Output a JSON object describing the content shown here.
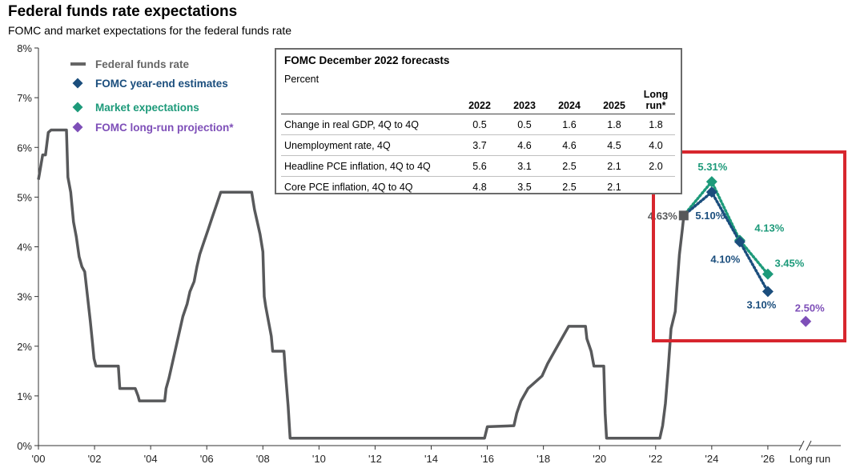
{
  "title": "Federal funds rate expectations",
  "subtitle": "FOMC and market expectations for the federal funds rate",
  "colors": {
    "fed_funds": "#58595b",
    "fomc": "#1b4e7d",
    "market": "#1d9a7a",
    "longrun": "#7e4fb8",
    "highlight": "#d7262e"
  },
  "legend": [
    {
      "label": "Federal funds rate",
      "marker": "line",
      "color": "#666666"
    },
    {
      "label": "FOMC  year-end estimates",
      "marker": "diamond",
      "color": "#1b4e7d"
    },
    {
      "label": "Market expectations",
      "marker": "diamond",
      "color": "#1d9a7a"
    },
    {
      "label": "FOMC  long-run projection*",
      "marker": "diamond",
      "color": "#7e4fb8"
    }
  ],
  "table": {
    "title": "FOMC December 2022 forecasts",
    "unit": "Percent",
    "columns": [
      "2022",
      "2023",
      "2024",
      "2025",
      "Long run*"
    ],
    "rows": [
      {
        "label": "Change in real GDP, 4Q to 4Q",
        "values": [
          "0.5",
          "0.5",
          "1.6",
          "1.8",
          "1.8"
        ]
      },
      {
        "label": "Unemployment rate, 4Q",
        "values": [
          "3.7",
          "4.6",
          "4.6",
          "4.5",
          "4.0"
        ]
      },
      {
        "label": "Headline PCE inflation, 4Q to 4Q",
        "values": [
          "5.6",
          "3.1",
          "2.5",
          "2.1",
          "2.0"
        ]
      },
      {
        "label": "Core PCE inflation, 4Q to 4Q",
        "values": [
          "4.8",
          "3.5",
          "2.5",
          "2.1",
          ""
        ]
      }
    ]
  },
  "chart_data": {
    "type": "line",
    "title": "Federal funds rate expectations",
    "subtitle": "FOMC and market expectations for the federal funds rate",
    "ylim": [
      0,
      8
    ],
    "xlim": [
      2000,
      2028.6
    ],
    "y_ticks": [
      "0%",
      "1%",
      "2%",
      "3%",
      "4%",
      "5%",
      "6%",
      "7%",
      "8%"
    ],
    "y_tick_values": [
      0,
      1,
      2,
      3,
      4,
      5,
      6,
      7,
      8
    ],
    "x_ticks": [
      "'00",
      "'02",
      "'04",
      "'06",
      "'08",
      "'10",
      "'12",
      "'14",
      "'16",
      "'18",
      "'20",
      "'22",
      "'24",
      "'26",
      "Long run"
    ],
    "x_tick_values": [
      2000,
      2002,
      2004,
      2006,
      2008,
      2010,
      2012,
      2014,
      2016,
      2018,
      2020,
      2022,
      2024,
      2026,
      2027.5
    ],
    "series": [
      {
        "name": "Federal funds rate",
        "points": [
          [
            2000.0,
            5.35
          ],
          [
            2000.15,
            5.85
          ],
          [
            2000.25,
            5.85
          ],
          [
            2000.35,
            6.3
          ],
          [
            2000.45,
            6.35
          ],
          [
            2001.0,
            6.35
          ],
          [
            2001.05,
            5.4
          ],
          [
            2001.15,
            5.1
          ],
          [
            2001.25,
            4.5
          ],
          [
            2001.35,
            4.2
          ],
          [
            2001.45,
            3.8
          ],
          [
            2001.55,
            3.6
          ],
          [
            2001.65,
            3.5
          ],
          [
            2001.75,
            3.0
          ],
          [
            2001.85,
            2.5
          ],
          [
            2001.92,
            2.1
          ],
          [
            2001.98,
            1.75
          ],
          [
            2002.05,
            1.6
          ],
          [
            2002.85,
            1.6
          ],
          [
            2002.9,
            1.15
          ],
          [
            2003.45,
            1.15
          ],
          [
            2003.55,
            1.0
          ],
          [
            2003.6,
            0.9
          ],
          [
            2004.5,
            0.9
          ],
          [
            2004.55,
            1.15
          ],
          [
            2004.65,
            1.35
          ],
          [
            2004.75,
            1.6
          ],
          [
            2004.85,
            1.85
          ],
          [
            2004.95,
            2.1
          ],
          [
            2005.05,
            2.35
          ],
          [
            2005.15,
            2.6
          ],
          [
            2005.3,
            2.85
          ],
          [
            2005.4,
            3.1
          ],
          [
            2005.55,
            3.3
          ],
          [
            2005.65,
            3.6
          ],
          [
            2005.75,
            3.85
          ],
          [
            2005.9,
            4.1
          ],
          [
            2006.05,
            4.35
          ],
          [
            2006.2,
            4.6
          ],
          [
            2006.35,
            4.85
          ],
          [
            2006.5,
            5.1
          ],
          [
            2007.6,
            5.1
          ],
          [
            2007.7,
            4.75
          ],
          [
            2007.8,
            4.5
          ],
          [
            2007.9,
            4.25
          ],
          [
            2008.0,
            3.9
          ],
          [
            2008.05,
            3.0
          ],
          [
            2008.1,
            2.8
          ],
          [
            2008.3,
            2.2
          ],
          [
            2008.35,
            1.9
          ],
          [
            2008.75,
            1.9
          ],
          [
            2008.8,
            1.5
          ],
          [
            2008.9,
            0.8
          ],
          [
            2008.97,
            0.15
          ],
          [
            2015.9,
            0.15
          ],
          [
            2016.0,
            0.38
          ],
          [
            2016.95,
            0.4
          ],
          [
            2017.05,
            0.65
          ],
          [
            2017.2,
            0.9
          ],
          [
            2017.45,
            1.15
          ],
          [
            2017.95,
            1.4
          ],
          [
            2018.15,
            1.65
          ],
          [
            2018.4,
            1.9
          ],
          [
            2018.65,
            2.15
          ],
          [
            2018.9,
            2.4
          ],
          [
            2019.5,
            2.4
          ],
          [
            2019.55,
            2.15
          ],
          [
            2019.7,
            1.9
          ],
          [
            2019.8,
            1.6
          ],
          [
            2019.95,
            1.6
          ],
          [
            2020.15,
            1.6
          ],
          [
            2020.2,
            0.65
          ],
          [
            2020.25,
            0.15
          ],
          [
            2022.15,
            0.15
          ],
          [
            2022.25,
            0.4
          ],
          [
            2022.35,
            0.85
          ],
          [
            2022.45,
            1.55
          ],
          [
            2022.55,
            2.35
          ],
          [
            2022.7,
            2.7
          ],
          [
            2022.75,
            3.1
          ],
          [
            2022.85,
            3.85
          ],
          [
            2022.95,
            4.35
          ],
          [
            2023.0,
            4.6
          ]
        ]
      },
      {
        "name": "FOMC year-end estimates",
        "points": [
          [
            2023.0,
            4.63
          ],
          [
            2024.0,
            5.1
          ],
          [
            2025.0,
            4.1
          ],
          [
            2026.0,
            3.1
          ]
        ],
        "labels": [
          "4.63%",
          "5.10%",
          "4.10%",
          "3.10%"
        ]
      },
      {
        "name": "Market expectations",
        "points": [
          [
            2023.0,
            4.63
          ],
          [
            2024.0,
            5.31
          ],
          [
            2025.0,
            4.13
          ],
          [
            2026.0,
            3.45
          ]
        ],
        "labels": [
          "",
          "5.31%",
          "4.13%",
          "3.45%"
        ]
      },
      {
        "name": "FOMC long-run projection*",
        "points": [
          [
            2027.35,
            2.5
          ]
        ],
        "labels": [
          "2.50%"
        ]
      }
    ]
  }
}
